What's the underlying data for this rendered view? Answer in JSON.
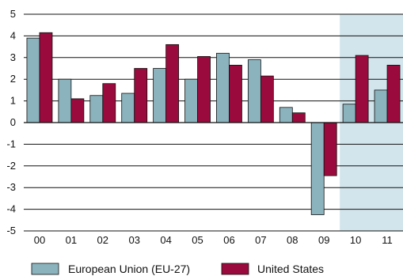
{
  "chart_data": {
    "type": "bar",
    "categories": [
      "00",
      "01",
      "02",
      "03",
      "04",
      "05",
      "06",
      "07",
      "08",
      "09",
      "10",
      "11"
    ],
    "series": [
      {
        "name": "European Union (EU-27)",
        "color": "#8bb3be",
        "values": [
          3.9,
          2.0,
          1.25,
          1.35,
          2.5,
          2.0,
          3.2,
          2.9,
          0.7,
          -4.25,
          0.85,
          1.5
        ]
      },
      {
        "name": "United States",
        "color": "#9b0a3c",
        "values": [
          4.15,
          1.1,
          1.8,
          2.5,
          3.6,
          3.05,
          2.65,
          2.15,
          0.45,
          -2.45,
          3.1,
          2.65
        ]
      }
    ],
    "ylim": [
      -5,
      5
    ],
    "yticks": [
      5,
      4,
      3,
      2,
      1,
      0,
      -1,
      -2,
      -3,
      -4,
      -5
    ],
    "grid": true,
    "highlighted_categories": [
      "10",
      "11"
    ],
    "highlight_color": "#d3e5ec",
    "legend_position": "bottom"
  }
}
